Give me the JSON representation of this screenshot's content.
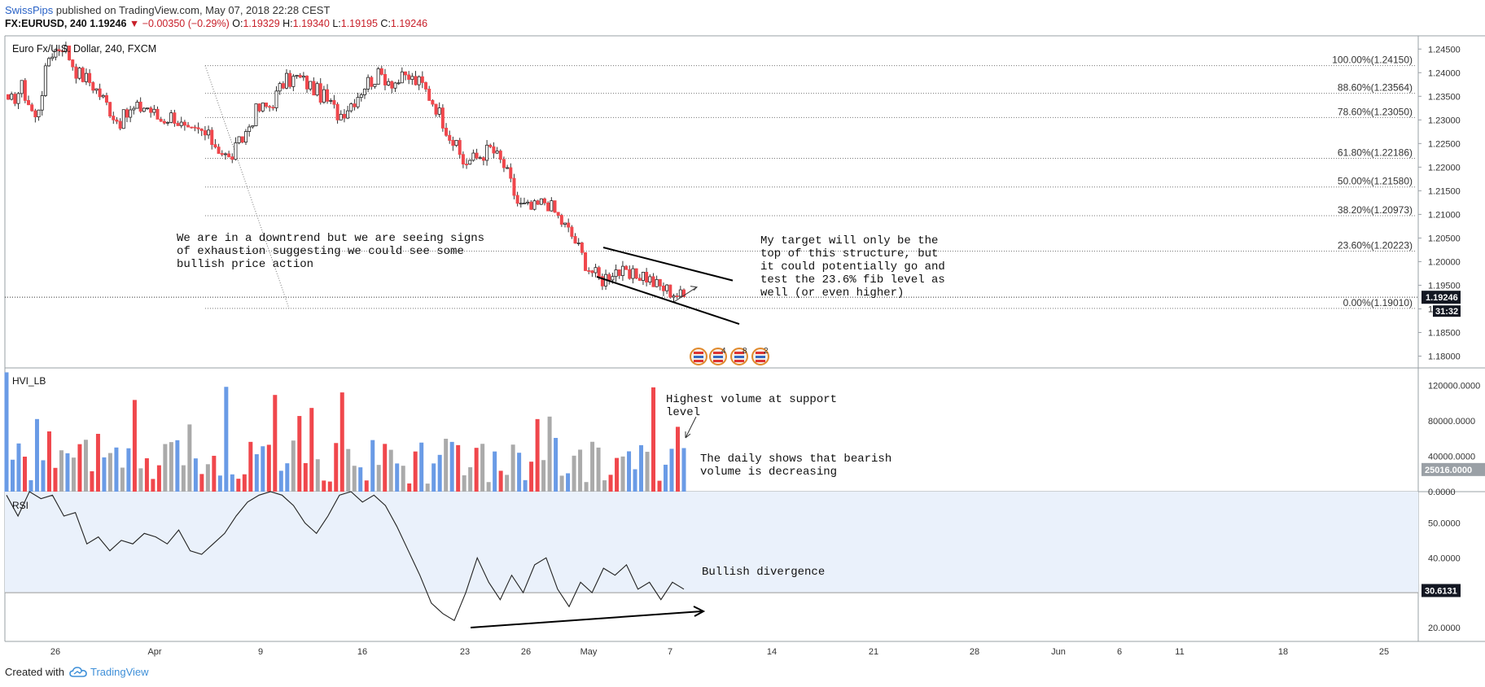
{
  "header": {
    "author": "SwissPips",
    "published": " published on TradingView.com, May 07, 2018 22:28 CEST",
    "symbol": "FX:EURUSD, 240",
    "last": "1.19246",
    "change": "−0.00350 (−0.29%)",
    "open_label": "O:",
    "open": "1.19329",
    "high_label": "H:",
    "high": "1.19340",
    "low_label": "L:",
    "low": "1.19195",
    "close_label": "C:",
    "close": "1.19246"
  },
  "colors": {
    "bull": "#6a9be6",
    "bear": "#f0474c",
    "neutral": "#aaaaaa",
    "rsi_band": "#eaf1fb",
    "axis_badge": "#131722"
  },
  "chart_data": [
    {
      "type": "candlestick",
      "title": "Euro Fx/U.S. Dollar, 240, FXCM",
      "x_ticks": [
        "26",
        "Apr",
        "9",
        "16",
        "23",
        "26",
        "May",
        "7",
        "14",
        "21",
        "28",
        "Jun",
        "6",
        "11",
        "18",
        "25"
      ],
      "y_ticks": [
        "1.24500",
        "1.24000",
        "1.23500",
        "1.23000",
        "1.22500",
        "1.22000",
        "1.21500",
        "1.21000",
        "1.20500",
        "1.20000",
        "1.19500",
        "1.19000",
        "1.18500",
        "1.18000"
      ],
      "ylim": [
        1.1775,
        1.2478
      ],
      "last_price": "1.19246",
      "countdown": "31:32",
      "price_path": [
        1.233,
        1.237,
        1.23,
        1.244,
        1.246,
        1.24,
        1.238,
        1.234,
        1.2295,
        1.232,
        1.233,
        1.23,
        1.231,
        1.227,
        1.2275,
        1.225,
        1.2215,
        1.226,
        1.232,
        1.233,
        1.238,
        1.239,
        1.237,
        1.2345,
        1.231,
        1.234,
        1.238,
        1.2395,
        1.238,
        1.239,
        1.2375,
        1.233,
        1.227,
        1.221,
        1.222,
        1.224,
        1.22,
        1.212,
        1.211,
        1.213,
        1.209,
        1.205,
        1.199,
        1.196,
        1.1985,
        1.1965,
        1.1975,
        1.195,
        1.1938,
        1.1925
      ],
      "fib_levels": [
        {
          "label": "100.00%(1.24150)",
          "value": 1.2415
        },
        {
          "label": "88.60%(1.23564)",
          "value": 1.23564
        },
        {
          "label": "78.60%(1.23050)",
          "value": 1.2305
        },
        {
          "label": "61.80%(1.22186)",
          "value": 1.22186
        },
        {
          "label": "50.00%(1.21580)",
          "value": 1.2158
        },
        {
          "label": "38.20%(1.20973)",
          "value": 1.20973
        },
        {
          "label": "23.60%(1.20223)",
          "value": 1.20223
        },
        {
          "label": "0.00%(1.19010)",
          "value": 1.1901
        }
      ],
      "annotations": [
        {
          "lines": [
            "We are in a downtrend but we are seeing signs",
            "of exhaustion suggesting we could see some",
            "bullish price action"
          ]
        },
        {
          "lines": [
            "My target will only be the",
            "top of this structure, but",
            "it could potentially go and",
            "test the 23.6% fib level as",
            "well (or even higher)"
          ]
        }
      ],
      "event_badges": [
        "4",
        "8",
        "2"
      ]
    },
    {
      "type": "bar",
      "title": "HVI_LB",
      "y_ticks": [
        "120000.0000",
        "80000.0000",
        "40000.0000",
        "0.0000"
      ],
      "ylim": [
        0,
        140000
      ],
      "last_value": "25016.0000",
      "annotations": [
        {
          "lines": [
            "Highest volume at support",
            "level"
          ]
        },
        {
          "lines": [
            "The daily shows that bearish",
            "volume is decreasing"
          ]
        }
      ]
    },
    {
      "type": "line",
      "title": "RSI",
      "y_ticks": [
        "50.0000",
        "40.0000",
        "20.0000"
      ],
      "ylim": [
        16,
        59
      ],
      "band": [
        30,
        70
      ],
      "last_value": "30.6131",
      "values": [
        58,
        52,
        60,
        57,
        58,
        52,
        53,
        44,
        46,
        42,
        45,
        44,
        47,
        46,
        44,
        48,
        42,
        41,
        44,
        47,
        52,
        56,
        58,
        60,
        58,
        55,
        50,
        47,
        52,
        58,
        60,
        56,
        58,
        55,
        49,
        42,
        35,
        27,
        24,
        22,
        30,
        40,
        33,
        28,
        35,
        30,
        38,
        40,
        31,
        26,
        33,
        30,
        37,
        35,
        38,
        31,
        33,
        28,
        33,
        31
      ],
      "annotations": [
        {
          "lines": [
            "Bullish divergence"
          ]
        }
      ]
    }
  ],
  "footer": {
    "created_with": "Created with",
    "brand": "TradingView"
  }
}
